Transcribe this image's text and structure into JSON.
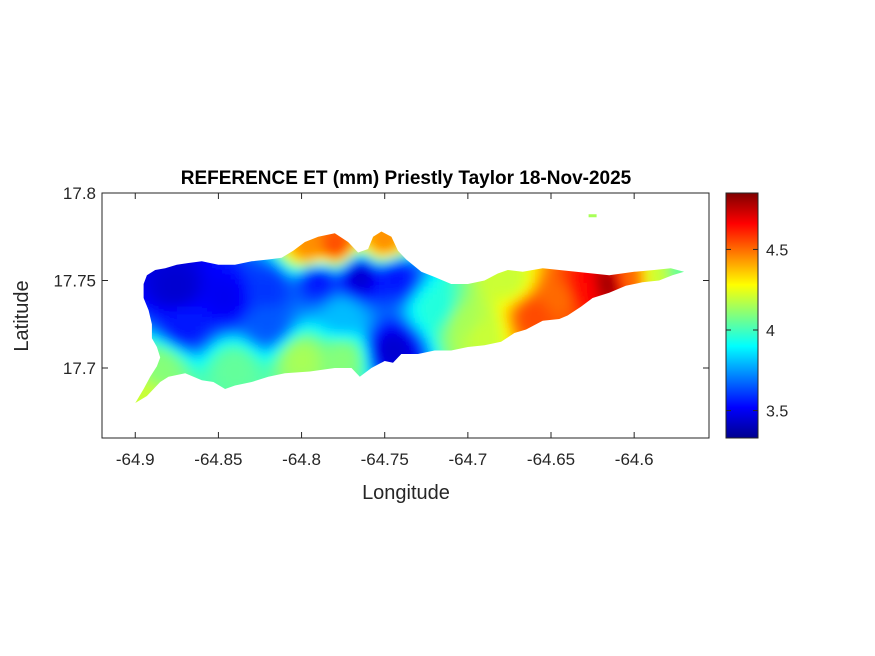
{
  "chart_data": {
    "type": "heatmap",
    "title": "REFERENCE ET (mm) Priestly Taylor 18-Nov-2025",
    "xlabel": "Longitude",
    "ylabel": "Latitude",
    "xlim": [
      -64.92,
      -64.555
    ],
    "ylim": [
      17.66,
      17.8
    ],
    "xticks": [
      -64.9,
      -64.85,
      -64.8,
      -64.75,
      -64.7,
      -64.65,
      -64.6
    ],
    "xtick_labels": [
      "-64.9",
      "-64.85",
      "-64.8",
      "-64.75",
      "-64.7",
      "-64.65",
      "-64.6"
    ],
    "yticks": [
      17.7,
      17.75,
      17.8
    ],
    "ytick_labels": [
      "17.7",
      "17.75",
      "17.8"
    ],
    "colormap": "jet",
    "colorbar": {
      "clim": [
        3.33,
        4.85
      ],
      "ticks": [
        3.5,
        4,
        4.5
      ],
      "tick_labels": [
        "3.5",
        "4",
        "4.5"
      ]
    },
    "island_outline": [
      [
        -64.9,
        17.68
      ],
      [
        -64.893,
        17.684
      ],
      [
        -64.885,
        17.692
      ],
      [
        -64.88,
        17.695
      ],
      [
        -64.87,
        17.697
      ],
      [
        -64.86,
        17.693
      ],
      [
        -64.853,
        17.692
      ],
      [
        -64.846,
        17.688
      ],
      [
        -64.84,
        17.69
      ],
      [
        -64.83,
        17.692
      ],
      [
        -64.82,
        17.695
      ],
      [
        -64.81,
        17.697
      ],
      [
        -64.795,
        17.698
      ],
      [
        -64.78,
        17.7
      ],
      [
        -64.77,
        17.7
      ],
      [
        -64.765,
        17.695
      ],
      [
        -64.758,
        17.7
      ],
      [
        -64.75,
        17.704
      ],
      [
        -64.745,
        17.703
      ],
      [
        -64.74,
        17.708
      ],
      [
        -64.73,
        17.708
      ],
      [
        -64.72,
        17.71
      ],
      [
        -64.71,
        17.71
      ],
      [
        -64.7,
        17.712
      ],
      [
        -64.69,
        17.713
      ],
      [
        -64.68,
        17.715
      ],
      [
        -64.672,
        17.72
      ],
      [
        -64.665,
        17.722
      ],
      [
        -64.655,
        17.727
      ],
      [
        -64.645,
        17.728
      ],
      [
        -64.64,
        17.73
      ],
      [
        -64.632,
        17.735
      ],
      [
        -64.625,
        17.74
      ],
      [
        -64.615,
        17.743
      ],
      [
        -64.605,
        17.747
      ],
      [
        -64.595,
        17.749
      ],
      [
        -64.585,
        17.75
      ],
      [
        -64.577,
        17.753
      ],
      [
        -64.57,
        17.755
      ],
      [
        -64.578,
        17.757
      ],
      [
        -64.588,
        17.756
      ],
      [
        -64.6,
        17.755
      ],
      [
        -64.615,
        17.753
      ],
      [
        -64.625,
        17.754
      ],
      [
        -64.635,
        17.755
      ],
      [
        -64.645,
        17.756
      ],
      [
        -64.655,
        17.757
      ],
      [
        -64.667,
        17.755
      ],
      [
        -64.676,
        17.756
      ],
      [
        -64.682,
        17.754
      ],
      [
        -64.69,
        17.75
      ],
      [
        -64.7,
        17.748
      ],
      [
        -64.71,
        17.748
      ],
      [
        -64.72,
        17.752
      ],
      [
        -64.728,
        17.755
      ],
      [
        -64.737,
        17.762
      ],
      [
        -64.742,
        17.767
      ],
      [
        -64.746,
        17.775
      ],
      [
        -64.752,
        17.778
      ],
      [
        -64.757,
        17.775
      ],
      [
        -64.76,
        17.768
      ],
      [
        -64.766,
        17.766
      ],
      [
        -64.772,
        17.772
      ],
      [
        -64.78,
        17.777
      ],
      [
        -64.79,
        17.775
      ],
      [
        -64.798,
        17.772
      ],
      [
        -64.805,
        17.767
      ],
      [
        -64.812,
        17.763
      ],
      [
        -64.82,
        17.762
      ],
      [
        -64.83,
        17.761
      ],
      [
        -64.84,
        17.759
      ],
      [
        -64.85,
        17.759
      ],
      [
        -64.86,
        17.761
      ],
      [
        -64.868,
        17.76
      ],
      [
        -64.875,
        17.759
      ],
      [
        -64.882,
        17.757
      ],
      [
        -64.888,
        17.756
      ],
      [
        -64.893,
        17.753
      ],
      [
        -64.895,
        17.748
      ],
      [
        -64.895,
        17.74
      ],
      [
        -64.892,
        17.733
      ],
      [
        -64.89,
        17.725
      ],
      [
        -64.89,
        17.717
      ],
      [
        -64.887,
        17.712
      ],
      [
        -64.885,
        17.706
      ],
      [
        -64.887,
        17.701
      ],
      [
        -64.891,
        17.695
      ],
      [
        -64.895,
        17.688
      ],
      [
        -64.9,
        17.68
      ]
    ],
    "islet": [
      -64.625,
      17.787
    ],
    "field_centers": [
      {
        "lon": -64.875,
        "lat": 17.745,
        "value": 3.45
      },
      {
        "lon": -64.845,
        "lat": 17.74,
        "value": 3.5
      },
      {
        "lon": -64.87,
        "lat": 17.725,
        "value": 3.55
      },
      {
        "lon": -64.82,
        "lat": 17.745,
        "value": 3.6
      },
      {
        "lon": -64.79,
        "lat": 17.75,
        "value": 3.55
      },
      {
        "lon": -64.765,
        "lat": 17.752,
        "value": 3.45
      },
      {
        "lon": -64.743,
        "lat": 17.752,
        "value": 3.55
      },
      {
        "lon": -64.745,
        "lat": 17.71,
        "value": 3.45
      },
      {
        "lon": -64.82,
        "lat": 17.725,
        "value": 3.65
      },
      {
        "lon": -64.775,
        "lat": 17.73,
        "value": 3.8
      },
      {
        "lon": -64.72,
        "lat": 17.735,
        "value": 3.95
      },
      {
        "lon": -64.885,
        "lat": 17.7,
        "value": 4.1
      },
      {
        "lon": -64.895,
        "lat": 17.683,
        "value": 4.2
      },
      {
        "lon": -64.84,
        "lat": 17.7,
        "value": 4.05
      },
      {
        "lon": -64.8,
        "lat": 17.705,
        "value": 4.15
      },
      {
        "lon": -64.775,
        "lat": 17.705,
        "value": 4.1
      },
      {
        "lon": -64.7,
        "lat": 17.725,
        "value": 4.15
      },
      {
        "lon": -64.693,
        "lat": 17.72,
        "value": 4.2
      },
      {
        "lon": -64.78,
        "lat": 17.77,
        "value": 4.55
      },
      {
        "lon": -64.795,
        "lat": 17.768,
        "value": 4.45
      },
      {
        "lon": -64.75,
        "lat": 17.772,
        "value": 4.45
      },
      {
        "lon": -64.675,
        "lat": 17.75,
        "value": 4.2
      },
      {
        "lon": -64.66,
        "lat": 17.73,
        "value": 4.55
      },
      {
        "lon": -64.645,
        "lat": 17.74,
        "value": 4.5
      },
      {
        "lon": -64.63,
        "lat": 17.745,
        "value": 4.65
      },
      {
        "lon": -64.615,
        "lat": 17.748,
        "value": 4.8
      },
      {
        "lon": -64.603,
        "lat": 17.751,
        "value": 4.5
      },
      {
        "lon": -64.585,
        "lat": 17.752,
        "value": 4.2
      },
      {
        "lon": -64.573,
        "lat": 17.754,
        "value": 4.05
      },
      {
        "lon": -64.625,
        "lat": 17.787,
        "value": 4.15
      }
    ]
  }
}
